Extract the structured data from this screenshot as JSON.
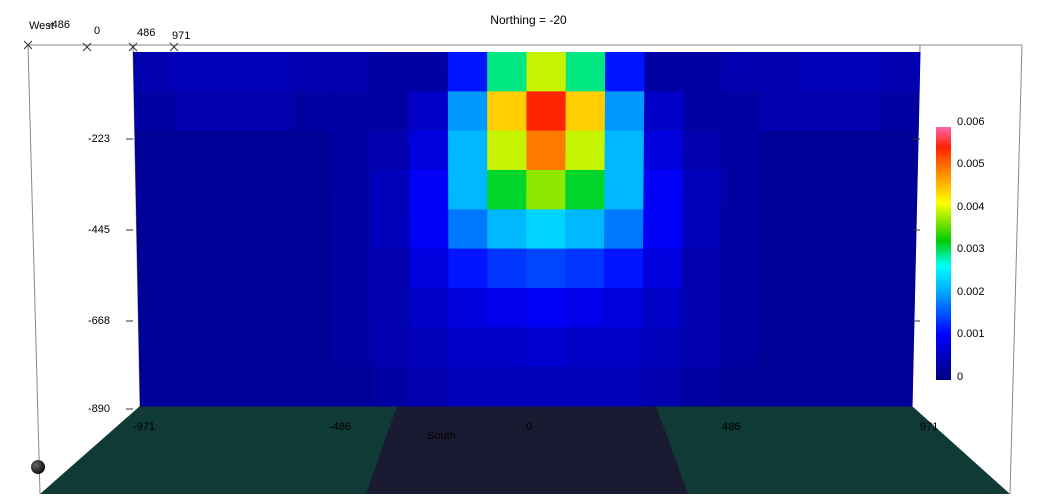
{
  "title": "Northing =  -20",
  "chart_data": {
    "type": "heatmap",
    "title": "Northing =  -20",
    "y_ticks": [
      "-223",
      "-445",
      "-668",
      "-890"
    ],
    "bottom_ticks": [
      "-971",
      "-486",
      "0",
      "486",
      "971"
    ],
    "top_ticks": [
      "-486",
      "0",
      "486",
      "971"
    ],
    "corner_label": "West",
    "bottom_label": "South",
    "colorbar": {
      "ticks": [
        "0.006",
        "0.005",
        "0.004",
        "0.003",
        "0.002",
        "0.001",
        "0"
      ],
      "range": [
        0,
        0.006
      ]
    },
    "grid_cols": 20,
    "grid_rows": 9,
    "grid": [
      [
        0.0004,
        0.0005,
        0.0005,
        0.0005,
        0.0004,
        0.0004,
        0.0003,
        0.0003,
        0.0012,
        0.003,
        0.004,
        0.003,
        0.0012,
        0.0003,
        0.0003,
        0.0004,
        0.0004,
        0.0005,
        0.0005,
        0.0004
      ],
      [
        0.0003,
        0.0004,
        0.0004,
        0.0004,
        0.0003,
        0.0003,
        0.0003,
        0.0006,
        0.002,
        0.0045,
        0.0055,
        0.0045,
        0.002,
        0.0006,
        0.0003,
        0.0003,
        0.0004,
        0.0004,
        0.0004,
        0.0003
      ],
      [
        0.0002,
        0.0002,
        0.0002,
        0.0002,
        0.0002,
        0.0003,
        0.0004,
        0.0008,
        0.0022,
        0.004,
        0.005,
        0.004,
        0.0022,
        0.0008,
        0.0004,
        0.0003,
        0.0002,
        0.0002,
        0.0002,
        0.0002
      ],
      [
        0.0002,
        0.0002,
        0.0002,
        0.0002,
        0.0002,
        0.0003,
        0.0005,
        0.001,
        0.0022,
        0.0032,
        0.0038,
        0.0032,
        0.0022,
        0.001,
        0.0005,
        0.0003,
        0.0002,
        0.0002,
        0.0002,
        0.0002
      ],
      [
        0.0002,
        0.0002,
        0.0002,
        0.0002,
        0.0002,
        0.0003,
        0.0005,
        0.001,
        0.0018,
        0.0022,
        0.0024,
        0.0022,
        0.0018,
        0.001,
        0.0005,
        0.0003,
        0.0002,
        0.0002,
        0.0002,
        0.0002
      ],
      [
        0.0002,
        0.0002,
        0.0002,
        0.0002,
        0.0002,
        0.0003,
        0.0004,
        0.0008,
        0.0012,
        0.0014,
        0.0015,
        0.0014,
        0.0012,
        0.0008,
        0.0004,
        0.0003,
        0.0002,
        0.0002,
        0.0002,
        0.0002
      ],
      [
        0.0002,
        0.0002,
        0.0002,
        0.0002,
        0.0002,
        0.0003,
        0.0004,
        0.0006,
        0.0008,
        0.0009,
        0.001,
        0.0009,
        0.0008,
        0.0006,
        0.0004,
        0.0003,
        0.0002,
        0.0002,
        0.0002,
        0.0002
      ],
      [
        0.0002,
        0.0002,
        0.0002,
        0.0002,
        0.0002,
        0.0003,
        0.0004,
        0.0005,
        0.0006,
        0.0006,
        0.0007,
        0.0006,
        0.0006,
        0.0005,
        0.0004,
        0.0003,
        0.0002,
        0.0002,
        0.0002,
        0.0002
      ],
      [
        0.0002,
        0.0002,
        0.0002,
        0.0002,
        0.0002,
        0.0002,
        0.0003,
        0.0004,
        0.0005,
        0.0005,
        0.0005,
        0.0005,
        0.0005,
        0.0004,
        0.0003,
        0.0002,
        0.0002,
        0.0002,
        0.0002,
        0.0002
      ]
    ]
  }
}
